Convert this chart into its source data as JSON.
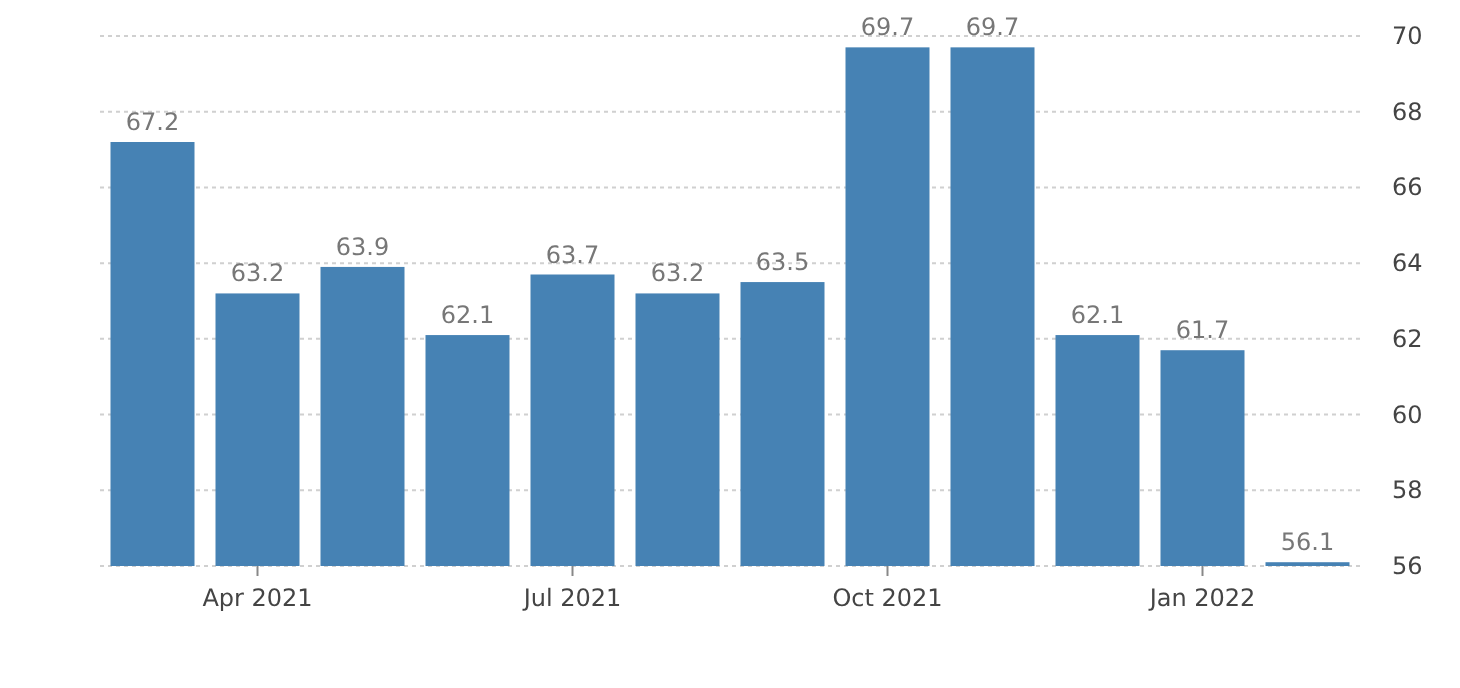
{
  "chart_data": {
    "type": "bar",
    "categories": [
      null,
      "Apr 2021",
      null,
      null,
      "Jul 2021",
      null,
      null,
      "Oct 2021",
      null,
      null,
      "Jan 2022",
      null
    ],
    "values": [
      67.2,
      63.2,
      63.9,
      62.1,
      63.7,
      63.2,
      63.5,
      69.7,
      69.7,
      62.1,
      61.7,
      56.1
    ],
    "color": "#4682b4",
    "ylim": [
      56,
      70
    ],
    "yticks": [
      56,
      58,
      60,
      62,
      64,
      66,
      68,
      70
    ],
    "grid": "y",
    "data_labels": true
  }
}
